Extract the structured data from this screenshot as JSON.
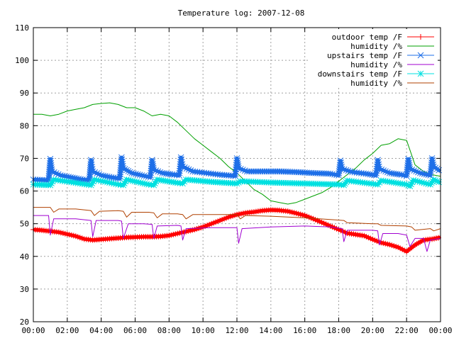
{
  "chart_data": {
    "type": "line",
    "title": "Temperature log: 2007-12-08",
    "xlabel": "",
    "ylabel": "",
    "ylim": [
      20,
      110
    ],
    "yticks": [
      20,
      30,
      40,
      50,
      60,
      70,
      80,
      90,
      100,
      110
    ],
    "xlim": [
      0,
      24
    ],
    "xticks": [
      0,
      2,
      4,
      6,
      8,
      10,
      12,
      14,
      16,
      18,
      20,
      22,
      24
    ],
    "xticklabels": [
      "00:00",
      "02:00",
      "04:00",
      "06:00",
      "08:00",
      "10:00",
      "12:00",
      "14:00",
      "16:00",
      "18:00",
      "20:00",
      "22:00",
      "00:00"
    ],
    "grid": true,
    "legend_position": "top-right",
    "series": [
      {
        "name": "outdoor temp /F",
        "color": "#ff0000",
        "marker": "plus",
        "x": [
          0,
          0.5,
          1,
          1.5,
          2,
          2.5,
          3,
          3.5,
          4,
          4.5,
          5,
          5.5,
          6,
          6.5,
          7,
          7.5,
          8,
          8.5,
          9,
          9.5,
          10,
          10.5,
          11,
          11.5,
          12,
          12.5,
          13,
          13.5,
          14,
          14.5,
          15,
          15.5,
          16,
          16.5,
          17,
          17.5,
          18,
          18.5,
          19,
          19.5,
          20,
          20.5,
          21,
          21.5,
          22,
          22.5,
          23,
          23.5,
          24
        ],
        "values": [
          48.2,
          48.0,
          47.7,
          47.4,
          46.8,
          46.2,
          45.3,
          45.0,
          45.2,
          45.4,
          45.6,
          45.8,
          45.9,
          46.0,
          46.0,
          46.1,
          46.4,
          47.0,
          47.6,
          48.2,
          49.0,
          50.0,
          51.0,
          52.0,
          52.8,
          53.3,
          53.6,
          54.0,
          54.2,
          54.1,
          53.8,
          53.2,
          52.5,
          51.5,
          50.4,
          49.3,
          48.2,
          47.1,
          46.7,
          46.3,
          45.2,
          44.2,
          43.6,
          42.8,
          41.5,
          43.5,
          45.0,
          45.3,
          45.8
        ]
      },
      {
        "name": "humidity /%",
        "color": "#00a000",
        "marker": "none",
        "x": [
          0,
          0.5,
          1,
          1.5,
          2,
          2.5,
          3,
          3.5,
          4,
          4.5,
          5,
          5.5,
          6,
          6.5,
          7,
          7.5,
          8,
          8.5,
          9,
          9.5,
          10,
          10.5,
          11,
          11.5,
          12,
          12.5,
          13,
          13.5,
          14,
          14.5,
          15,
          15.5,
          16,
          16.5,
          17,
          17.5,
          18,
          18.5,
          19,
          19.5,
          20,
          20.5,
          21,
          21.5,
          22,
          22.5,
          23,
          23.5,
          24
        ],
        "values": [
          83.5,
          83.5,
          83.0,
          83.5,
          84.5,
          85.0,
          85.5,
          86.5,
          86.8,
          87.0,
          86.5,
          85.5,
          85.5,
          84.5,
          83.0,
          83.5,
          83.0,
          81.0,
          78.5,
          76.0,
          74.0,
          72.0,
          70.0,
          67.5,
          65.5,
          63.0,
          60.5,
          59.0,
          57.0,
          56.5,
          56.0,
          56.5,
          57.5,
          58.5,
          59.5,
          61.0,
          63.0,
          65.0,
          67.0,
          69.5,
          71.5,
          74.0,
          74.5,
          76.0,
          75.5,
          68.0,
          66.0,
          65.0,
          64.5
        ]
      },
      {
        "name": "upstairs temp /F",
        "color": "#1e6fe8",
        "marker": "cross",
        "x": [
          0,
          0.9,
          1.0,
          1.1,
          1.6,
          2.2,
          2.9,
          3.3,
          3.4,
          3.5,
          4.0,
          4.6,
          5.1,
          5.2,
          5.3,
          5.8,
          6.4,
          6.9,
          7.0,
          7.1,
          7.6,
          8.3,
          8.6,
          8.7,
          8.8,
          9.4,
          10.2,
          11.0,
          11.9,
          12.0,
          12.1,
          12.6,
          13.5,
          14.5,
          15.5,
          16.5,
          17.5,
          18.0,
          18.1,
          18.2,
          18.8,
          19.6,
          20.2,
          20.3,
          20.4,
          21.0,
          21.7,
          22.0,
          22.1,
          22.2,
          22.8,
          23.4,
          23.5,
          23.6,
          24
        ],
        "values": [
          63.5,
          63.3,
          69.8,
          66.0,
          64.8,
          64.2,
          63.5,
          63.3,
          69.5,
          66.0,
          64.8,
          64.2,
          63.8,
          70.3,
          67.0,
          65.5,
          64.8,
          64.2,
          69.5,
          66.5,
          65.5,
          65.0,
          64.8,
          70.3,
          67.5,
          66.0,
          65.5,
          65.0,
          64.6,
          70.0,
          67.0,
          66.0,
          66.0,
          66.0,
          65.8,
          65.5,
          65.3,
          64.8,
          69.3,
          66.8,
          65.8,
          65.3,
          64.8,
          69.5,
          66.8,
          65.5,
          65.0,
          64.6,
          69.8,
          66.8,
          65.5,
          64.8,
          70.0,
          67.5,
          66.0
        ]
      },
      {
        "name": "humidity /%",
        "color": "#a000d0",
        "marker": "none",
        "x": [
          0,
          0.9,
          1.0,
          1.2,
          2.5,
          3.4,
          3.5,
          3.7,
          5.0,
          5.2,
          5.3,
          5.6,
          6.5,
          7.0,
          7.1,
          7.3,
          8.5,
          8.7,
          8.8,
          9.0,
          10.5,
          11.5,
          12.0,
          12.1,
          12.3,
          14.0,
          16.0,
          17.5,
          18.2,
          18.3,
          18.5,
          20.0,
          20.3,
          20.4,
          20.6,
          21.5,
          22.0,
          22.2,
          22.5,
          23.0,
          23.2,
          23.4,
          24
        ],
        "values": [
          52.5,
          52.5,
          46.5,
          51.5,
          51.5,
          51.0,
          46.0,
          51.0,
          51.0,
          50.8,
          45.5,
          50.0,
          50.0,
          49.8,
          45.5,
          49.3,
          49.5,
          49.3,
          45.0,
          48.5,
          48.8,
          48.8,
          48.8,
          44.0,
          48.5,
          49.0,
          49.3,
          49.0,
          48.5,
          44.5,
          48.0,
          48.0,
          47.8,
          43.5,
          47.0,
          47.0,
          46.5,
          43.0,
          45.5,
          45.5,
          41.5,
          45.0,
          45.5
        ]
      },
      {
        "name": "downstairs temp /F",
        "color": "#00e0e0",
        "marker": "star",
        "x": [
          0,
          1.0,
          1.2,
          2.5,
          3.4,
          3.6,
          5.0,
          5.3,
          5.5,
          6.8,
          7.1,
          7.3,
          8.5,
          8.8,
          9.0,
          10.5,
          12.0,
          12.2,
          14.0,
          16.0,
          18.0,
          18.3,
          18.5,
          20.3,
          20.5,
          22.0,
          22.2,
          22.4,
          23.4,
          23.6,
          24
        ],
        "values": [
          62.0,
          61.8,
          63.5,
          62.5,
          61.8,
          63.5,
          62.0,
          61.8,
          63.5,
          62.0,
          61.8,
          63.5,
          62.5,
          62.3,
          63.5,
          62.8,
          62.3,
          63.0,
          62.6,
          62.3,
          62.0,
          61.8,
          63.2,
          62.0,
          63.2,
          62.0,
          61.5,
          63.3,
          62.0,
          63.5,
          62.5
        ]
      },
      {
        "name": "humidity /%",
        "color": "#b04000",
        "marker": "none",
        "x": [
          0,
          1.0,
          1.2,
          1.5,
          2.5,
          3.4,
          3.6,
          3.9,
          5.0,
          5.3,
          5.5,
          5.8,
          6.8,
          7.1,
          7.3,
          7.6,
          8.5,
          8.8,
          9.0,
          9.4,
          10.5,
          12.0,
          12.2,
          12.5,
          14.0,
          16.0,
          17.5,
          18.3,
          18.5,
          20.0,
          20.3,
          20.5,
          22.0,
          22.3,
          22.5,
          23.4,
          23.6,
          24
        ],
        "values": [
          55.0,
          55.0,
          53.5,
          54.5,
          54.5,
          54.0,
          52.5,
          53.8,
          54.0,
          53.8,
          52.0,
          53.5,
          53.5,
          53.3,
          51.8,
          53.0,
          53.0,
          52.8,
          51.5,
          52.8,
          52.8,
          52.8,
          51.5,
          52.5,
          52.3,
          51.8,
          51.3,
          51.0,
          50.3,
          50.0,
          50.0,
          49.5,
          49.3,
          49.0,
          48.0,
          48.5,
          47.8,
          48.5
        ]
      }
    ]
  }
}
